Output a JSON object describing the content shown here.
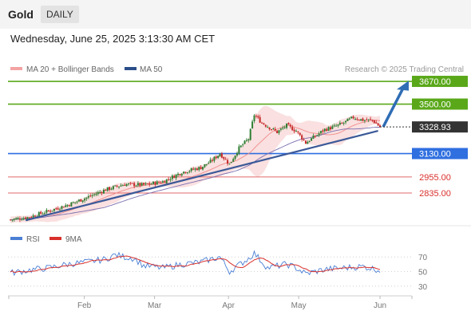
{
  "header": {
    "title": "Gold",
    "period": "DAILY"
  },
  "datetime": "Wednesday, June 25, 2025 3:13:30 AM CET",
  "legend": {
    "ma_bb": "MA 20 + Bollinger Bands",
    "ma50": "MA 50",
    "rsi": "RSI",
    "ma9": "9MA"
  },
  "credit": "Research © 2025 Trading Central",
  "colors": {
    "resistance": "#5aa81a",
    "support": "#2f6fe0",
    "minor": "#e06a6a",
    "up": "#2e7d32",
    "down": "#c62828",
    "ma": "#3b5998",
    "band": "#f6c6c6",
    "rsi": "#4a7fd4",
    "rsi_ma": "#d9302c",
    "arrow": "#2f6db5"
  },
  "chart_data": [
    {
      "type": "candlestick",
      "x_ticks": [
        "Feb",
        "Mar",
        "Apr",
        "May",
        "Jun"
      ],
      "current_price": "3328.93",
      "levels": [
        {
          "label": "3670.00",
          "value": 3670,
          "kind": "resistance"
        },
        {
          "label": "3500.00",
          "value": 3500,
          "kind": "resistance"
        },
        {
          "label": "3130.00",
          "value": 3130,
          "kind": "support"
        },
        {
          "label": "2955.00",
          "value": 2955,
          "kind": "minor"
        },
        {
          "label": "2835.00",
          "value": 2835,
          "kind": "minor"
        }
      ],
      "price_range": [
        2620,
        3700
      ],
      "anchors": [
        [
          0,
          2635
        ],
        [
          10,
          2655
        ],
        [
          20,
          2700
        ],
        [
          30,
          2745
        ],
        [
          40,
          2800
        ],
        [
          50,
          2860
        ],
        [
          60,
          2900
        ],
        [
          70,
          2895
        ],
        [
          80,
          2920
        ],
        [
          90,
          2990
        ],
        [
          100,
          3025
        ],
        [
          105,
          3070
        ],
        [
          110,
          3130
        ],
        [
          115,
          3050
        ],
        [
          120,
          3170
        ],
        [
          125,
          3240
        ],
        [
          128,
          3420
        ],
        [
          132,
          3360
        ],
        [
          140,
          3290
        ],
        [
          145,
          3340
        ],
        [
          150,
          3300
        ],
        [
          155,
          3210
        ],
        [
          160,
          3260
        ],
        [
          165,
          3310
        ],
        [
          170,
          3330
        ],
        [
          175,
          3360
        ],
        [
          180,
          3400
        ],
        [
          185,
          3380
        ],
        [
          190,
          3380
        ],
        [
          194,
          3329
        ]
      ]
    },
    {
      "type": "line",
      "name": "RSI",
      "y_ticks": [
        70,
        50,
        30
      ],
      "ylim": [
        20,
        80
      ],
      "anchors": [
        [
          0,
          48
        ],
        [
          10,
          52
        ],
        [
          20,
          55
        ],
        [
          30,
          60
        ],
        [
          40,
          63
        ],
        [
          50,
          67
        ],
        [
          55,
          73
        ],
        [
          60,
          70
        ],
        [
          65,
          68
        ],
        [
          70,
          58
        ],
        [
          80,
          55
        ],
        [
          90,
          60
        ],
        [
          100,
          63
        ],
        [
          110,
          70
        ],
        [
          115,
          50
        ],
        [
          125,
          68
        ],
        [
          128,
          75
        ],
        [
          135,
          55
        ],
        [
          145,
          60
        ],
        [
          150,
          55
        ],
        [
          155,
          47
        ],
        [
          165,
          53
        ],
        [
          175,
          55
        ],
        [
          185,
          57
        ],
        [
          194,
          52
        ]
      ]
    }
  ]
}
